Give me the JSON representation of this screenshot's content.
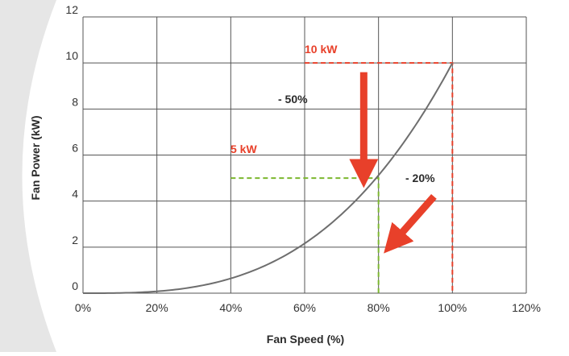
{
  "chart_data": {
    "type": "line",
    "title": "",
    "xlabel": "Fan Speed (%)",
    "ylabel": "Fan Power (kW)",
    "xlim": [
      0,
      120
    ],
    "ylim": [
      0,
      12
    ],
    "x_ticks": [
      {
        "value": 0,
        "label": "0%"
      },
      {
        "value": 20,
        "label": "20%"
      },
      {
        "value": 40,
        "label": "40%"
      },
      {
        "value": 60,
        "label": "60%"
      },
      {
        "value": 80,
        "label": "80%"
      },
      {
        "value": 100,
        "label": "100%"
      },
      {
        "value": 120,
        "label": "120%"
      }
    ],
    "y_ticks": [
      {
        "value": 0,
        "label": "0"
      },
      {
        "value": 2,
        "label": "2"
      },
      {
        "value": 4,
        "label": "4"
      },
      {
        "value": 6,
        "label": "6"
      },
      {
        "value": 8,
        "label": "8"
      },
      {
        "value": 10,
        "label": "10"
      },
      {
        "value": 12,
        "label": "12"
      }
    ],
    "grid": true,
    "series": [
      {
        "color": "#6e6e6e",
        "x": [
          0,
          10,
          20,
          30,
          40,
          50,
          60,
          70,
          80,
          90,
          100
        ],
        "y": [
          0,
          0.01,
          0.08,
          0.27,
          0.64,
          1.25,
          2.16,
          3.43,
          5.12,
          7.29,
          10.0
        ]
      }
    ],
    "reference_lines": [
      {
        "color": "#e8402a",
        "points": [
          [
            60,
            10
          ],
          [
            100,
            10
          ],
          [
            100,
            0
          ]
        ]
      },
      {
        "color": "#7cb82f",
        "points": [
          [
            40,
            5
          ],
          [
            80,
            5
          ],
          [
            80,
            0
          ]
        ]
      }
    ],
    "annotations": [
      {
        "text": "10 kW",
        "color": "#e8402a"
      },
      {
        "text": "5 kW",
        "color": "#e8402a"
      },
      {
        "text": "- 50%",
        "color": "#2b2b2b"
      },
      {
        "text": "- 20%",
        "color": "#2b2b2b"
      }
    ],
    "arrows": [
      {
        "color": "#e8402a",
        "from": [
          76,
          9.6
        ],
        "to": [
          76,
          5.2
        ]
      },
      {
        "color": "#e8402a",
        "from": [
          95,
          4.2
        ],
        "to": [
          84,
          2.2
        ]
      }
    ],
    "colors": {
      "background_wedge": "#e6e6e6",
      "grid": "#555555"
    }
  }
}
